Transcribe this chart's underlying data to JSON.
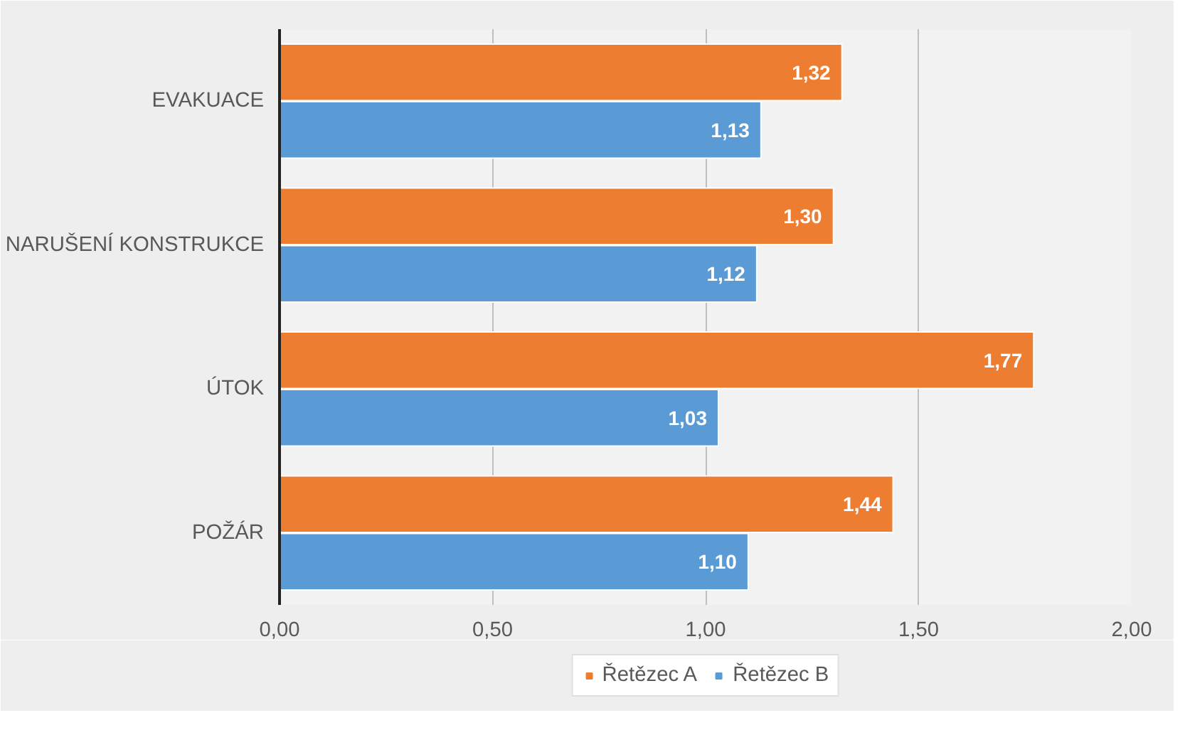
{
  "chart_data": {
    "type": "bar",
    "orientation": "horizontal",
    "categories": [
      "EVAKUACE",
      "NARUŠENÍ KONSTRUKCE",
      "ÚTOK",
      "POŽÁR"
    ],
    "series": [
      {
        "name": "Řetězec A",
        "color": "#ed7d31",
        "values": [
          1.32,
          1.3,
          1.77,
          1.44
        ],
        "value_labels": [
          "1,32",
          "1,30",
          "1,77",
          "1,44"
        ]
      },
      {
        "name": "Řetězec B",
        "color": "#5b9bd5",
        "values": [
          1.13,
          1.12,
          1.03,
          1.1
        ],
        "value_labels": [
          "1,13",
          "1,12",
          "1,03",
          "1,10"
        ]
      }
    ],
    "xlim": [
      0,
      2
    ],
    "xticks": [
      {
        "value": 0,
        "label": "0,00"
      },
      {
        "value": 0.5,
        "label": "0,50"
      },
      {
        "value": 1,
        "label": "1,00"
      },
      {
        "value": 1.5,
        "label": "1,50"
      },
      {
        "value": 2,
        "label": "2,00"
      }
    ],
    "grid": "x",
    "legend": "bottom"
  }
}
